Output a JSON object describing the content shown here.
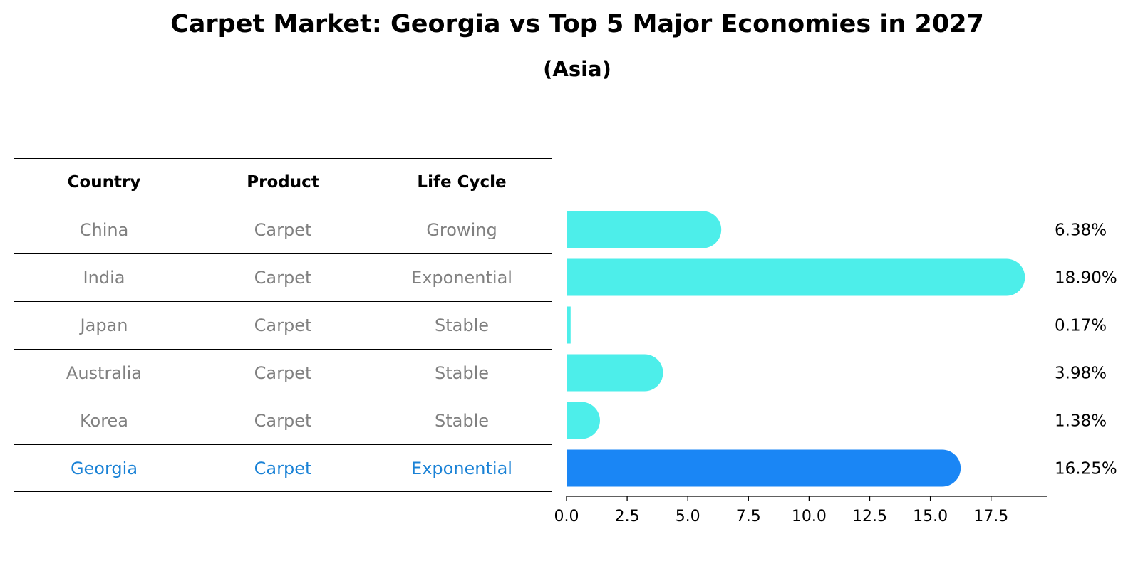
{
  "chart_data": {
    "type": "bar",
    "orientation": "horizontal",
    "title": "Carpet Market: Georgia vs Top 5 Major Economies in 2027",
    "subtitle": "(Asia)",
    "table": {
      "headers": [
        "Country",
        "Product",
        "Life Cycle"
      ],
      "rows": [
        [
          "China",
          "Carpet",
          "Growing"
        ],
        [
          "India",
          "Carpet",
          "Exponential"
        ],
        [
          "Japan",
          "Carpet",
          "Stable"
        ],
        [
          "Australia",
          "Carpet",
          "Stable"
        ],
        [
          "Korea",
          "Carpet",
          "Stable"
        ],
        [
          "Georgia",
          "Carpet",
          "Exponential"
        ]
      ],
      "highlight_row": 5
    },
    "categories": [
      "China",
      "India",
      "Japan",
      "Australia",
      "Korea",
      "Georgia"
    ],
    "values": [
      6.38,
      18.9,
      0.17,
      3.98,
      1.38,
      16.25
    ],
    "value_labels": [
      "6.38%",
      "18.90%",
      "0.17%",
      "3.98%",
      "1.38%",
      "16.25%"
    ],
    "xlim": [
      0,
      19.8
    ],
    "xticks": [
      0.0,
      2.5,
      5.0,
      7.5,
      10.0,
      12.5,
      15.0,
      17.5
    ],
    "xtick_labels": [
      "0.0",
      "2.5",
      "5.0",
      "7.5",
      "10.0",
      "12.5",
      "15.0",
      "17.5"
    ],
    "colors": {
      "bar": "#4deeea",
      "highlight": "#1a86f5",
      "muted_text": "#808080",
      "highlight_text": "#1a82d6"
    },
    "grid": false,
    "legend": "none"
  }
}
